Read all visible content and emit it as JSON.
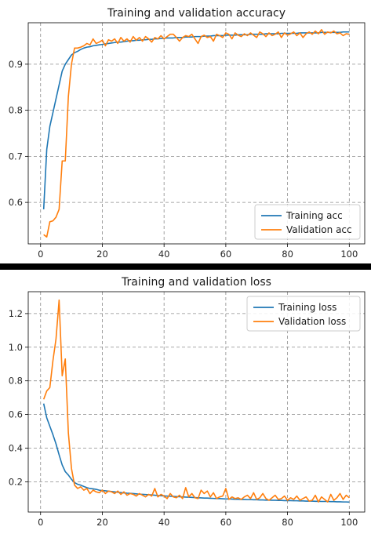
{
  "chart_data": [
    {
      "type": "line",
      "title": "Training and validation accuracy",
      "xlabel": "",
      "ylabel": "",
      "xlim": [
        -4,
        105
      ],
      "ylim": [
        0.51,
        0.99
      ],
      "xticks": [
        0,
        20,
        40,
        60,
        80,
        100
      ],
      "yticks": [
        0.6,
        0.7,
        0.8,
        0.9
      ],
      "ytick_labels": [
        "0.6",
        "0.7",
        "0.8",
        "0.9"
      ],
      "grid": true,
      "legend_position": "bottom-right",
      "series": [
        {
          "name": "Training acc",
          "color": "#1f77b4",
          "x": [
            1,
            2,
            3,
            4,
            5,
            6,
            7,
            8,
            9,
            10,
            11,
            12,
            13,
            14,
            15,
            16,
            17,
            18,
            19,
            20,
            21,
            22,
            23,
            24,
            25,
            26,
            27,
            28,
            29,
            30,
            31,
            32,
            33,
            34,
            35,
            36,
            37,
            38,
            39,
            40,
            41,
            42,
            43,
            44,
            45,
            46,
            47,
            48,
            49,
            50,
            51,
            52,
            53,
            54,
            55,
            56,
            57,
            58,
            59,
            60,
            61,
            62,
            63,
            64,
            65,
            66,
            67,
            68,
            69,
            70,
            71,
            72,
            73,
            74,
            75,
            76,
            77,
            78,
            79,
            80,
            81,
            82,
            83,
            84,
            85,
            86,
            87,
            88,
            89,
            90,
            91,
            92,
            93,
            94,
            95,
            96,
            97,
            98,
            99,
            100
          ],
          "y": [
            0.585,
            0.715,
            0.765,
            0.795,
            0.825,
            0.855,
            0.885,
            0.9,
            0.91,
            0.92,
            0.925,
            0.928,
            0.932,
            0.935,
            0.937,
            0.938,
            0.94,
            0.941,
            0.942,
            0.943,
            0.944,
            0.945,
            0.946,
            0.947,
            0.948,
            0.948,
            0.949,
            0.95,
            0.951,
            0.951,
            0.952,
            0.952,
            0.953,
            0.953,
            0.954,
            0.954,
            0.955,
            0.955,
            0.956,
            0.956,
            0.957,
            0.957,
            0.957,
            0.958,
            0.958,
            0.958,
            0.959,
            0.959,
            0.959,
            0.96,
            0.96,
            0.96,
            0.961,
            0.961,
            0.961,
            0.962,
            0.962,
            0.962,
            0.962,
            0.963,
            0.963,
            0.963,
            0.963,
            0.964,
            0.964,
            0.964,
            0.964,
            0.965,
            0.965,
            0.965,
            0.965,
            0.965,
            0.966,
            0.966,
            0.966,
            0.966,
            0.966,
            0.967,
            0.967,
            0.967,
            0.967,
            0.967,
            0.967,
            0.968,
            0.968,
            0.968,
            0.968,
            0.968,
            0.968,
            0.968,
            0.969,
            0.969,
            0.969,
            0.969,
            0.969,
            0.969,
            0.969,
            0.97,
            0.97,
            0.97
          ]
        },
        {
          "name": "Validation acc",
          "color": "#ff7f0e",
          "x": [
            1,
            2,
            3,
            4,
            5,
            6,
            7,
            8,
            9,
            10,
            11,
            12,
            13,
            14,
            15,
            16,
            17,
            18,
            19,
            20,
            21,
            22,
            23,
            24,
            25,
            26,
            27,
            28,
            29,
            30,
            31,
            32,
            33,
            34,
            35,
            36,
            37,
            38,
            39,
            40,
            41,
            42,
            43,
            44,
            45,
            46,
            47,
            48,
            49,
            50,
            51,
            52,
            53,
            54,
            55,
            56,
            57,
            58,
            59,
            60,
            61,
            62,
            63,
            64,
            65,
            66,
            67,
            68,
            69,
            70,
            71,
            72,
            73,
            74,
            75,
            76,
            77,
            78,
            79,
            80,
            81,
            82,
            83,
            84,
            85,
            86,
            87,
            88,
            89,
            90,
            91,
            92,
            93,
            94,
            95,
            96,
            97,
            98,
            99,
            100
          ],
          "y": [
            0.53,
            0.525,
            0.558,
            0.56,
            0.568,
            0.585,
            0.69,
            0.69,
            0.83,
            0.9,
            0.935,
            0.935,
            0.937,
            0.94,
            0.945,
            0.942,
            0.955,
            0.945,
            0.948,
            0.952,
            0.94,
            0.953,
            0.95,
            0.955,
            0.945,
            0.958,
            0.95,
            0.955,
            0.948,
            0.96,
            0.952,
            0.958,
            0.95,
            0.96,
            0.955,
            0.948,
            0.958,
            0.955,
            0.962,
            0.955,
            0.96,
            0.965,
            0.965,
            0.958,
            0.95,
            0.958,
            0.962,
            0.96,
            0.965,
            0.955,
            0.945,
            0.96,
            0.963,
            0.958,
            0.96,
            0.95,
            0.965,
            0.962,
            0.958,
            0.968,
            0.965,
            0.955,
            0.968,
            0.963,
            0.96,
            0.966,
            0.962,
            0.968,
            0.963,
            0.958,
            0.97,
            0.966,
            0.96,
            0.968,
            0.962,
            0.965,
            0.97,
            0.958,
            0.968,
            0.963,
            0.966,
            0.97,
            0.962,
            0.968,
            0.958,
            0.966,
            0.97,
            0.965,
            0.972,
            0.966,
            0.975,
            0.965,
            0.97,
            0.968,
            0.972,
            0.966,
            0.968,
            0.962,
            0.966,
            0.965
          ]
        }
      ]
    },
    {
      "type": "line",
      "title": "Training and validation loss",
      "xlabel": "",
      "ylabel": "",
      "xlim": [
        -4,
        105
      ],
      "ylim": [
        0.02,
        1.33
      ],
      "xticks": [
        0,
        20,
        40,
        60,
        80,
        100
      ],
      "yticks": [
        0.2,
        0.4,
        0.6,
        0.8,
        1.0,
        1.2
      ],
      "ytick_labels": [
        "0.2",
        "0.4",
        "0.6",
        "0.8",
        "1.0",
        "1.2"
      ],
      "grid": true,
      "legend_position": "top-right",
      "series": [
        {
          "name": "Training loss",
          "color": "#1f77b4",
          "x": [
            1,
            2,
            3,
            4,
            5,
            6,
            7,
            8,
            9,
            10,
            11,
            12,
            13,
            14,
            15,
            16,
            17,
            18,
            19,
            20,
            21,
            22,
            23,
            24,
            25,
            26,
            27,
            28,
            29,
            30,
            31,
            32,
            33,
            34,
            35,
            36,
            37,
            38,
            39,
            40,
            41,
            42,
            43,
            44,
            45,
            46,
            47,
            48,
            49,
            50,
            51,
            52,
            53,
            54,
            55,
            56,
            57,
            58,
            59,
            60,
            61,
            62,
            63,
            64,
            65,
            66,
            67,
            68,
            69,
            70,
            71,
            72,
            73,
            74,
            75,
            76,
            77,
            78,
            79,
            80,
            81,
            82,
            83,
            84,
            85,
            86,
            87,
            88,
            89,
            90,
            91,
            92,
            93,
            94,
            95,
            96,
            97,
            98,
            99,
            100
          ],
          "y": [
            0.665,
            0.58,
            0.53,
            0.48,
            0.425,
            0.36,
            0.3,
            0.26,
            0.24,
            0.215,
            0.195,
            0.185,
            0.18,
            0.172,
            0.165,
            0.16,
            0.158,
            0.155,
            0.15,
            0.148,
            0.146,
            0.144,
            0.142,
            0.14,
            0.138,
            0.136,
            0.134,
            0.132,
            0.131,
            0.13,
            0.128,
            0.126,
            0.125,
            0.124,
            0.123,
            0.122,
            0.12,
            0.118,
            0.117,
            0.116,
            0.115,
            0.114,
            0.113,
            0.112,
            0.111,
            0.11,
            0.109,
            0.108,
            0.107,
            0.106,
            0.105,
            0.104,
            0.103,
            0.103,
            0.102,
            0.101,
            0.1,
            0.1,
            0.099,
            0.098,
            0.098,
            0.097,
            0.096,
            0.096,
            0.095,
            0.095,
            0.094,
            0.094,
            0.093,
            0.093,
            0.092,
            0.092,
            0.091,
            0.091,
            0.09,
            0.09,
            0.089,
            0.089,
            0.088,
            0.088,
            0.088,
            0.087,
            0.087,
            0.086,
            0.086,
            0.085,
            0.085,
            0.085,
            0.084,
            0.084,
            0.083,
            0.083,
            0.083,
            0.082,
            0.082,
            0.081,
            0.081,
            0.08,
            0.08,
            0.079
          ]
        },
        {
          "name": "Validation loss",
          "color": "#ff7f0e",
          "x": [
            1,
            2,
            3,
            4,
            5,
            6,
            7,
            8,
            9,
            10,
            11,
            12,
            13,
            14,
            15,
            16,
            17,
            18,
            19,
            20,
            21,
            22,
            23,
            24,
            25,
            26,
            27,
            28,
            29,
            30,
            31,
            32,
            33,
            34,
            35,
            36,
            37,
            38,
            39,
            40,
            41,
            42,
            43,
            44,
            45,
            46,
            47,
            48,
            49,
            50,
            51,
            52,
            53,
            54,
            55,
            56,
            57,
            58,
            59,
            60,
            61,
            62,
            63,
            64,
            65,
            66,
            67,
            68,
            69,
            70,
            71,
            72,
            73,
            74,
            75,
            76,
            77,
            78,
            79,
            80,
            81,
            82,
            83,
            84,
            85,
            86,
            87,
            88,
            89,
            90,
            91,
            92,
            93,
            94,
            95,
            96,
            97,
            98,
            99,
            100
          ],
          "y": [
            0.69,
            0.74,
            0.76,
            0.92,
            1.05,
            1.28,
            0.83,
            0.93,
            0.49,
            0.28,
            0.18,
            0.16,
            0.17,
            0.15,
            0.16,
            0.13,
            0.15,
            0.14,
            0.135,
            0.15,
            0.13,
            0.145,
            0.14,
            0.13,
            0.145,
            0.125,
            0.14,
            0.12,
            0.13,
            0.125,
            0.115,
            0.13,
            0.12,
            0.11,
            0.125,
            0.115,
            0.16,
            0.11,
            0.125,
            0.115,
            0.1,
            0.13,
            0.11,
            0.105,
            0.12,
            0.1,
            0.165,
            0.11,
            0.13,
            0.105,
            0.1,
            0.15,
            0.13,
            0.145,
            0.11,
            0.135,
            0.1,
            0.11,
            0.115,
            0.16,
            0.095,
            0.11,
            0.1,
            0.105,
            0.095,
            0.11,
            0.12,
            0.1,
            0.135,
            0.095,
            0.105,
            0.13,
            0.1,
            0.09,
            0.105,
            0.12,
            0.095,
            0.1,
            0.115,
            0.09,
            0.105,
            0.095,
            0.115,
            0.09,
            0.1,
            0.11,
            0.085,
            0.09,
            0.12,
            0.08,
            0.11,
            0.095,
            0.08,
            0.125,
            0.09,
            0.105,
            0.13,
            0.095,
            0.12,
            0.105
          ]
        }
      ]
    }
  ]
}
